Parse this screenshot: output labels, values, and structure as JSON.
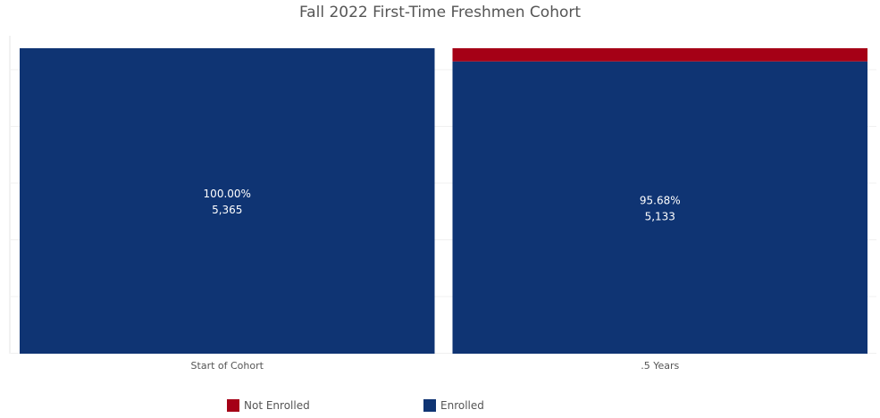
{
  "chart_data": {
    "type": "bar",
    "stacked": true,
    "title": "Fall 2022 First-Time Freshmen Cohort",
    "categories": [
      "Start of Cohort",
      ".5 Years"
    ],
    "series": [
      {
        "name": "Enrolled",
        "color": "#0f3473",
        "values": [
          100.0,
          95.68
        ],
        "counts": [
          "5,365",
          "5,133"
        ]
      },
      {
        "name": "Not Enrolled",
        "color": "#a50016",
        "values": [
          0.0,
          4.32
        ]
      }
    ],
    "data_labels": [
      {
        "percent": "100.00%",
        "count": "5,365"
      },
      {
        "percent": "95.68%",
        "count": "5,133"
      }
    ],
    "ylim": [
      0,
      100
    ],
    "grid": true,
    "legend_position": "bottom"
  },
  "legend": {
    "not_enrolled_label": "Not Enrolled",
    "enrolled_label": "Enrolled"
  }
}
